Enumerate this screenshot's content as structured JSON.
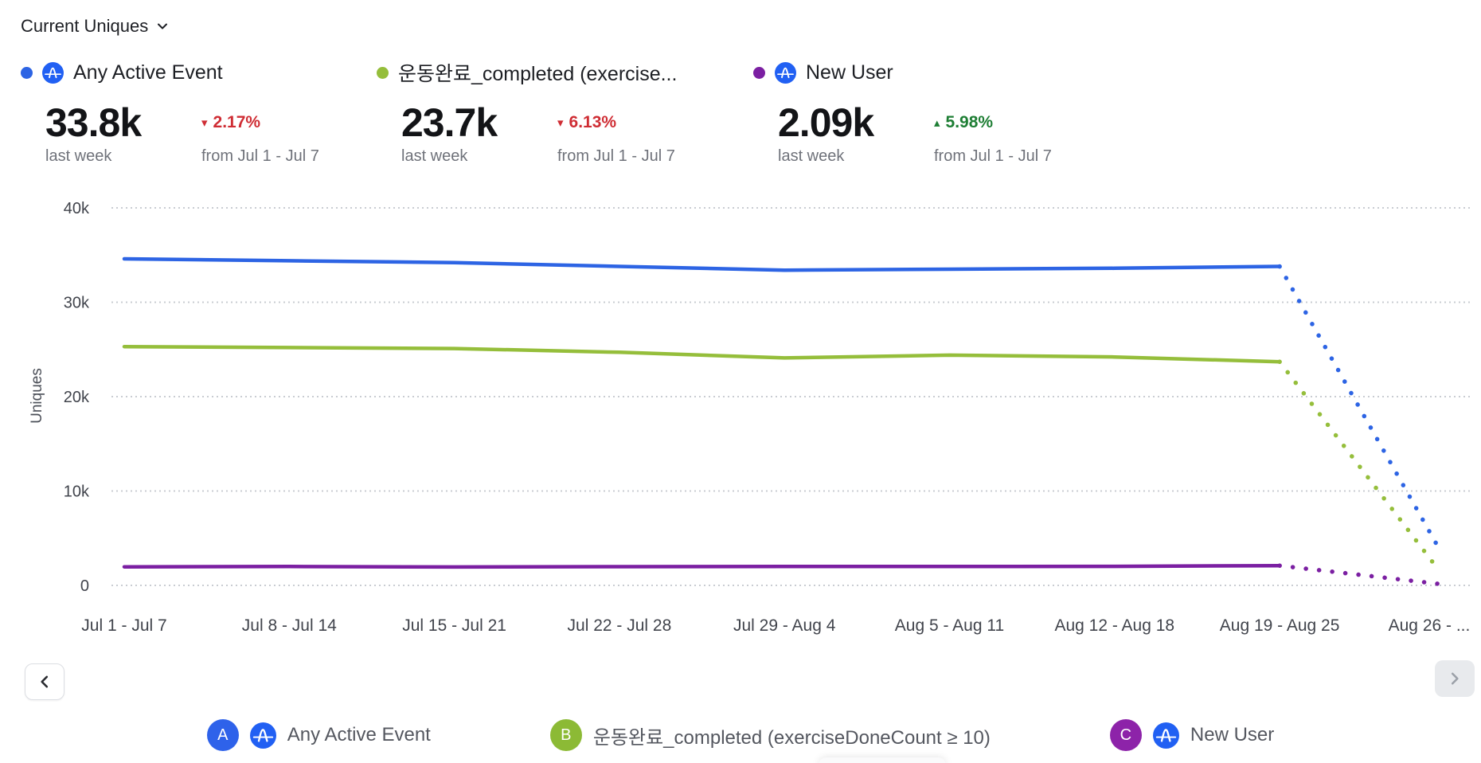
{
  "header": {
    "metric_selector_label": "Current Uniques"
  },
  "summary_cards": [
    {
      "title": "Any Active Event",
      "series_color": "#2d64e4",
      "has_amplitude_icon": true,
      "value": "33.8k",
      "value_caption": "last week",
      "change_glyph": "▾",
      "change_value": "2.17%",
      "change_direction": "down",
      "change_color": "#cf2d34",
      "change_caption": "from Jul 1 - Jul 7"
    },
    {
      "title": "운동완료_completed (exercise...",
      "series_color": "#95be3b",
      "has_amplitude_icon": false,
      "value": "23.7k",
      "value_caption": "last week",
      "change_glyph": "▾",
      "change_value": "6.13%",
      "change_direction": "down",
      "change_color": "#cf2d34",
      "change_caption": "from Jul 1 - Jul 7"
    },
    {
      "title": "New User",
      "series_color": "#7b1fa2",
      "has_amplitude_icon": true,
      "value": "2.09k",
      "value_caption": "last week",
      "change_glyph": "▴",
      "change_value": "5.98%",
      "change_direction": "up",
      "change_color": "#1e7e34",
      "change_caption": "from Jul 1 - Jul 7"
    }
  ],
  "chart_data": {
    "type": "line",
    "title": "",
    "xlabel": "",
    "ylabel": "Uniques",
    "ylim": [
      0,
      40000
    ],
    "grid": "horizontal-dotted",
    "legend_position": "bottom-center",
    "yticks": [
      {
        "value": 0,
        "label": "0"
      },
      {
        "value": 10000,
        "label": "10k"
      },
      {
        "value": 20000,
        "label": "20k"
      },
      {
        "value": 30000,
        "label": "30k"
      },
      {
        "value": 40000,
        "label": "40k"
      }
    ],
    "categories": [
      "Jul 1 - Jul 7",
      "Jul 8 - Jul 14",
      "Jul 15 - Jul 21",
      "Jul 22 - Jul 28",
      "Jul 29 - Aug 4",
      "Aug 5 - Aug 11",
      "Aug 12 - Aug 18",
      "Aug 19 - Aug 25",
      "Aug 26 - ..."
    ],
    "projection_note": "last category is an incomplete week drawn as a dotted projection segment",
    "series": [
      {
        "name": "Any Active Event",
        "color": "#2d64e4",
        "values": [
          34600,
          34400,
          34200,
          33800,
          33400,
          33500,
          33600,
          33800
        ],
        "projected_last_value": 3800
      },
      {
        "name": "운동완료_completed (exerciseDoneCount ≥ 10)",
        "color": "#95be3b",
        "values": [
          25300,
          25200,
          25100,
          24700,
          24100,
          24400,
          24200,
          23700
        ],
        "projected_last_value": 1500
      },
      {
        "name": "New User",
        "color": "#7b1fa2",
        "values": [
          1970,
          2000,
          1950,
          1980,
          2000,
          2000,
          2020,
          2090
        ],
        "projected_last_value": 150
      }
    ]
  },
  "pagination": {
    "prev_glyph": "‹",
    "next_glyph": "›"
  },
  "legend": {
    "items": [
      {
        "badge_letter": "A",
        "badge_color": "#2e62ea",
        "has_amplitude_icon": true,
        "label": "Any Active Event"
      },
      {
        "badge_letter": "B",
        "badge_color": "#8cba35",
        "has_amplitude_icon": false,
        "label": "운동완료_completed (exerciseDoneCount ≥ 10)"
      },
      {
        "badge_letter": "C",
        "badge_color": "#8d23a9",
        "has_amplitude_icon": true,
        "label": "New User"
      }
    ]
  },
  "colors": {
    "amplitude_icon_blue": "#2160f3",
    "grid_line": "#c9ccd2",
    "axis_text": "#41444c"
  }
}
